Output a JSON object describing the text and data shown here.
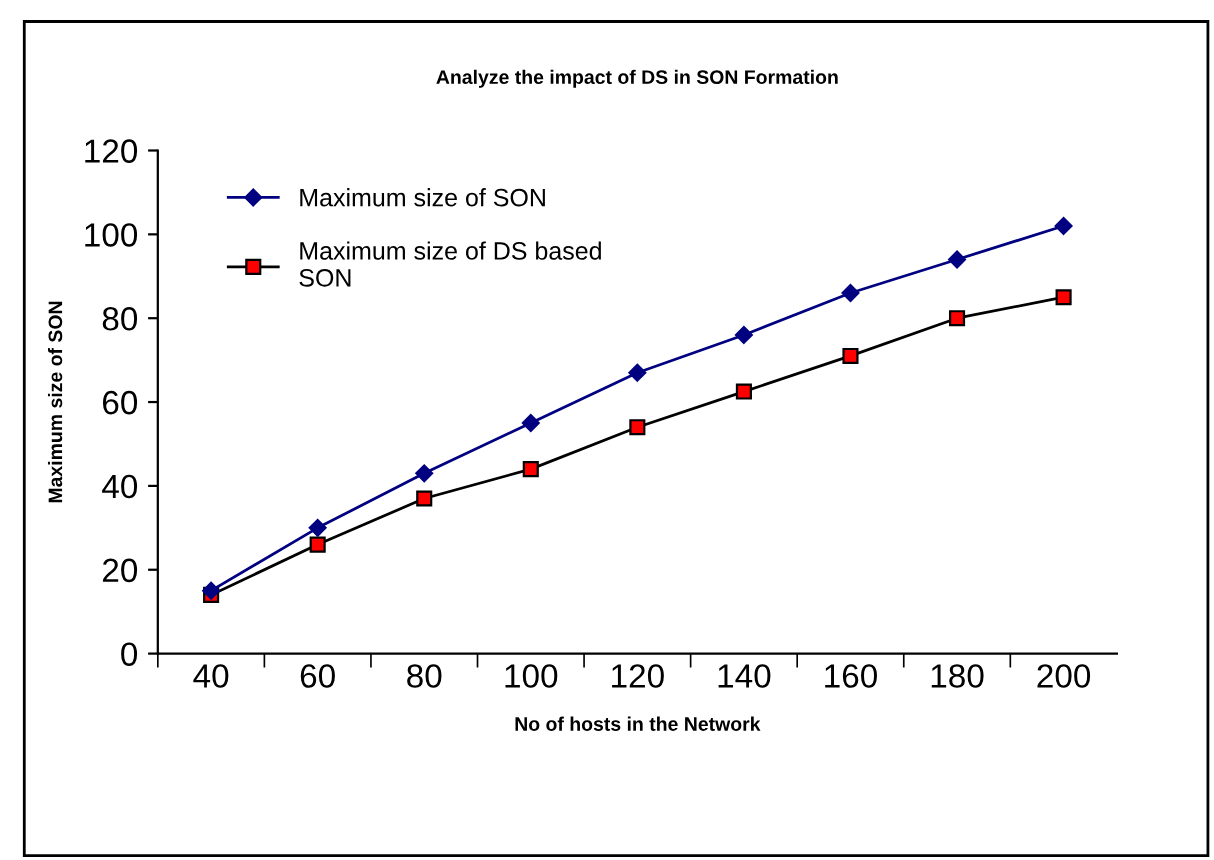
{
  "chart_data": {
    "type": "line",
    "title": "Analyze the impact of DS in SON Formation",
    "xlabel": "No of hosts in the Network",
    "ylabel": "Maximum size of SON",
    "categories": [
      "40",
      "60",
      "80",
      "100",
      "120",
      "140",
      "160",
      "180",
      "200"
    ],
    "series": [
      {
        "name": "Maximum size of SON",
        "color": "#000080",
        "marker": "diamond",
        "values": [
          15,
          30,
          43,
          55,
          67,
          76,
          86,
          94,
          102
        ]
      },
      {
        "name": "Maximum size of DS based\nSON",
        "color": "#000000",
        "marker": "square",
        "values": [
          14,
          26,
          37,
          44,
          54,
          62.5,
          71,
          80,
          85
        ]
      }
    ],
    "ylim": [
      0,
      120
    ],
    "yticks": [
      0,
      20,
      40,
      60,
      80,
      100,
      120
    ],
    "grid": false,
    "legend": "top left",
    "line_style": "solid"
  }
}
